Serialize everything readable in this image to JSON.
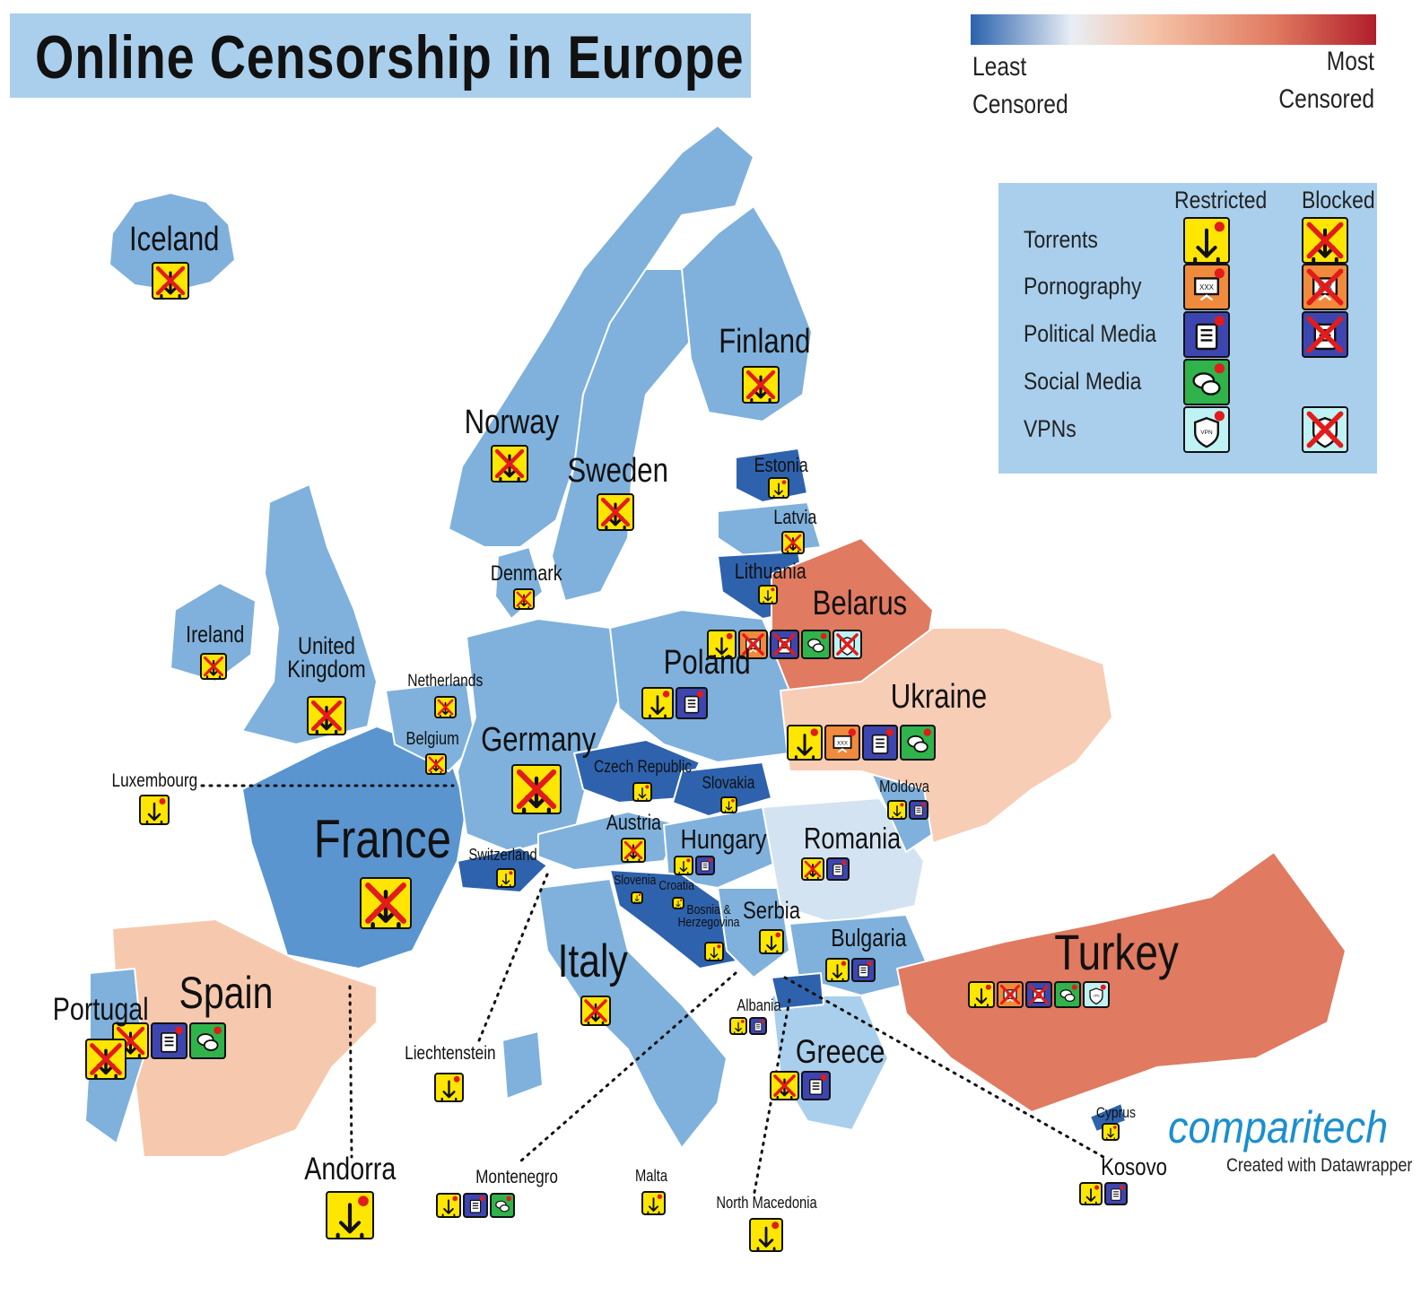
{
  "title": "Online Censorship in Europe",
  "scale": {
    "least_line1": "Least",
    "least_line2": "Censored",
    "most_line1": "Most",
    "most_line2": "Censored",
    "colors": [
      "#2b62ad",
      "#e9eef5",
      "#f5c3a8",
      "#e07a60",
      "#b11e2b"
    ]
  },
  "legend": {
    "col_restricted": "Restricted",
    "col_blocked": "Blocked",
    "rows": [
      {
        "label": "Torrents",
        "icon": "torrent-icon",
        "color": "#ffe600",
        "restricted": true,
        "blocked": true
      },
      {
        "label": "Pornography",
        "icon": "pornography-icon",
        "color": "#f08a3c",
        "restricted": true,
        "blocked": true
      },
      {
        "label": "Political Media",
        "icon": "newspaper-icon",
        "color": "#3d46b0",
        "restricted": true,
        "blocked": true
      },
      {
        "label": "Social Media",
        "icon": "chat-icon",
        "color": "#2fb34a",
        "restricted": true,
        "blocked": false
      },
      {
        "label": "VPNs",
        "icon": "vpn-shield-icon",
        "color": "#bff2f4",
        "restricted": true,
        "blocked": true
      }
    ]
  },
  "countries": [
    {
      "name": "Iceland",
      "icons": [
        [
          "torrent",
          "b"
        ]
      ]
    },
    {
      "name": "Finland",
      "icons": [
        [
          "torrent",
          "b"
        ]
      ]
    },
    {
      "name": "Norway",
      "icons": [
        [
          "torrent",
          "b"
        ]
      ]
    },
    {
      "name": "Sweden",
      "icons": [
        [
          "torrent",
          "b"
        ]
      ]
    },
    {
      "name": "Estonia",
      "icons": [
        [
          "torrent",
          "r"
        ]
      ]
    },
    {
      "name": "Latvia",
      "icons": [
        [
          "torrent",
          "b"
        ]
      ]
    },
    {
      "name": "Lithuania",
      "icons": [
        [
          "torrent",
          "r"
        ]
      ]
    },
    {
      "name": "Denmark",
      "icons": [
        [
          "torrent",
          "b"
        ]
      ]
    },
    {
      "name": "Belarus",
      "icons": [
        [
          "torrent",
          "r"
        ],
        [
          "porn",
          "b"
        ],
        [
          "news",
          "b"
        ],
        [
          "chat",
          "r"
        ],
        [
          "vpn",
          "b"
        ]
      ]
    },
    {
      "name": "Ireland",
      "icons": [
        [
          "torrent",
          "b"
        ]
      ]
    },
    {
      "name": "United Kingdom",
      "icons": [
        [
          "torrent",
          "b"
        ]
      ]
    },
    {
      "name": "Netherlands",
      "icons": [
        [
          "torrent",
          "b"
        ]
      ]
    },
    {
      "name": "Poland",
      "icons": [
        [
          "torrent",
          "r"
        ],
        [
          "news",
          "r"
        ]
      ]
    },
    {
      "name": "Ukraine",
      "icons": [
        [
          "torrent",
          "r"
        ],
        [
          "porn",
          "r"
        ],
        [
          "news",
          "r"
        ],
        [
          "chat",
          "r"
        ]
      ]
    },
    {
      "name": "Belgium",
      "icons": [
        [
          "torrent",
          "b"
        ]
      ]
    },
    {
      "name": "Germany",
      "icons": [
        [
          "torrent",
          "b"
        ]
      ]
    },
    {
      "name": "Czech Republic",
      "icons": [
        [
          "torrent",
          "r"
        ]
      ]
    },
    {
      "name": "Slovakia",
      "icons": [
        [
          "torrent",
          "r"
        ]
      ]
    },
    {
      "name": "Luxembourg",
      "icons": [
        [
          "torrent",
          "r"
        ]
      ]
    },
    {
      "name": "Moldova",
      "icons": [
        [
          "torrent",
          "r"
        ],
        [
          "news",
          "r"
        ]
      ]
    },
    {
      "name": "France",
      "icons": [
        [
          "torrent",
          "b"
        ]
      ]
    },
    {
      "name": "Austria",
      "icons": [
        [
          "torrent",
          "b"
        ]
      ]
    },
    {
      "name": "Hungary",
      "icons": [
        [
          "torrent",
          "r"
        ],
        [
          "news",
          "r"
        ]
      ]
    },
    {
      "name": "Romania",
      "icons": [
        [
          "torrent",
          "b"
        ],
        [
          "news",
          "r"
        ]
      ]
    },
    {
      "name": "Switzerland",
      "icons": [
        [
          "torrent",
          "r"
        ]
      ]
    },
    {
      "name": "Slovenia",
      "icons": [
        [
          "torrent",
          "r"
        ]
      ]
    },
    {
      "name": "Croatia",
      "icons": [
        [
          "torrent",
          "r"
        ]
      ]
    },
    {
      "name": "Bosnia & Herzegovina",
      "icons": [
        [
          "torrent",
          "r"
        ]
      ]
    },
    {
      "name": "Serbia",
      "icons": [
        [
          "torrent",
          "r"
        ]
      ]
    },
    {
      "name": "Bulgaria",
      "icons": [
        [
          "torrent",
          "r"
        ],
        [
          "news",
          "r"
        ]
      ]
    },
    {
      "name": "Turkey",
      "icons": [
        [
          "torrent",
          "r"
        ],
        [
          "porn",
          "b"
        ],
        [
          "news",
          "b"
        ],
        [
          "chat",
          "r"
        ],
        [
          "vpn",
          "r"
        ]
      ]
    },
    {
      "name": "Italy",
      "icons": [
        [
          "torrent",
          "b"
        ]
      ]
    },
    {
      "name": "Spain",
      "icons": [
        [
          "torrent",
          "b"
        ],
        [
          "news",
          "r"
        ],
        [
          "chat",
          "r"
        ]
      ]
    },
    {
      "name": "Portugal",
      "icons": [
        [
          "torrent",
          "b"
        ]
      ]
    },
    {
      "name": "Albania",
      "icons": [
        [
          "torrent",
          "r"
        ],
        [
          "news",
          "r"
        ]
      ]
    },
    {
      "name": "Greece",
      "icons": [
        [
          "torrent",
          "b"
        ],
        [
          "news",
          "r"
        ]
      ]
    },
    {
      "name": "Liechtenstein",
      "icons": [
        [
          "torrent",
          "r"
        ]
      ]
    },
    {
      "name": "Cyprus",
      "icons": [
        [
          "torrent",
          "r"
        ]
      ]
    },
    {
      "name": "Andorra",
      "icons": [
        [
          "torrent",
          "r"
        ]
      ]
    },
    {
      "name": "Montenegro",
      "icons": [
        [
          "torrent",
          "r"
        ],
        [
          "news",
          "r"
        ],
        [
          "chat",
          "r"
        ]
      ]
    },
    {
      "name": "Malta",
      "icons": [
        [
          "torrent",
          "r"
        ]
      ]
    },
    {
      "name": "North Macedonia",
      "icons": [
        [
          "torrent",
          "r"
        ]
      ]
    },
    {
      "name": "Kosovo",
      "icons": [
        [
          "torrent",
          "r"
        ],
        [
          "news",
          "r"
        ]
      ]
    }
  ],
  "brand": "comparitech",
  "brand_sub": "Created with Datawrapper"
}
